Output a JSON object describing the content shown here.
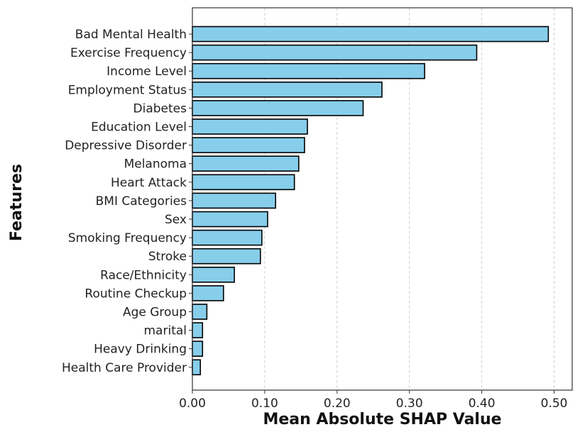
{
  "chart_data": {
    "type": "bar",
    "orientation": "horizontal",
    "title": "",
    "xlabel": "Mean Absolute SHAP Value",
    "ylabel": "Features",
    "xlim": [
      0,
      0.525
    ],
    "xticks": [
      "0.00",
      "0.10",
      "0.20",
      "0.30",
      "0.40",
      "0.50"
    ],
    "grid": "vertical dashed",
    "bar_color": "#87ceeb",
    "bar_edge_color": "#000000",
    "categories": [
      "Bad Mental Health",
      "Exercise Frequency",
      "Income Level",
      "Employment Status",
      "Diabetes",
      "Education Level",
      "Depressive Disorder",
      "Melanoma",
      "Heart Attack",
      "BMI Categories",
      "Sex",
      "Smoking Frequency",
      "Stroke",
      "Race/Ethnicity",
      "Routine Checkup",
      "Age Group",
      "marital",
      "Heavy Drinking",
      "Health Care Provider"
    ],
    "values": [
      0.492,
      0.393,
      0.321,
      0.262,
      0.236,
      0.159,
      0.155,
      0.147,
      0.141,
      0.115,
      0.104,
      0.096,
      0.094,
      0.058,
      0.043,
      0.02,
      0.014,
      0.014,
      0.011
    ]
  }
}
